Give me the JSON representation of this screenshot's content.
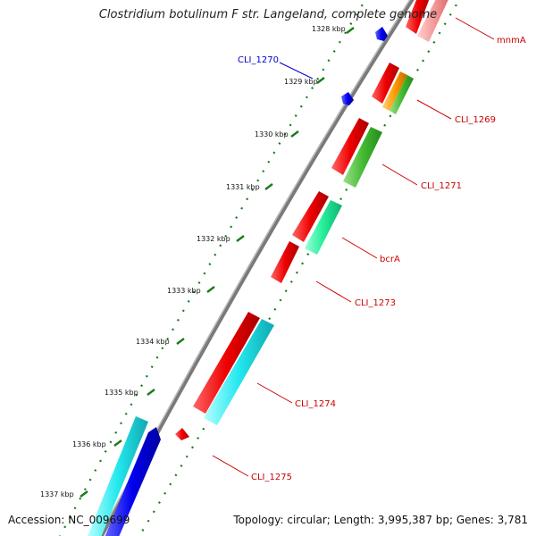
{
  "title": "Clostridium botulinum F str. Langeland, complete genome",
  "footer": {
    "accession": "Accession: NC_009699",
    "topology": "Topology: circular; Length: 3,995,387 bp; Genes: 3,781"
  },
  "colors": {
    "backbone": "#7a7a7a",
    "tick": "#1a7a1a",
    "label_red": "#cc0000",
    "label_blue": "#0000cc"
  },
  "kbp_ticks": [
    "1328 kbp",
    "1329 kbp",
    "1330 kbp",
    "1331 kbp",
    "1332 kbp",
    "1333 kbp",
    "1334 kbp",
    "1335 kbp",
    "1336 kbp",
    "1337 kbp"
  ],
  "gene_labels": [
    {
      "text": "mnmA",
      "color": "#cc0000"
    },
    {
      "text": "CLI_1270",
      "color": "#0000cc"
    },
    {
      "text": "CLI_1269",
      "color": "#cc0000"
    },
    {
      "text": "CLI_1271",
      "color": "#cc0000"
    },
    {
      "text": "bcrA",
      "color": "#cc0000"
    },
    {
      "text": "CLI_1273",
      "color": "#cc0000"
    },
    {
      "text": "CLI_1274",
      "color": "#cc0000"
    },
    {
      "text": "CLI_1275",
      "color": "#cc0000"
    }
  ]
}
